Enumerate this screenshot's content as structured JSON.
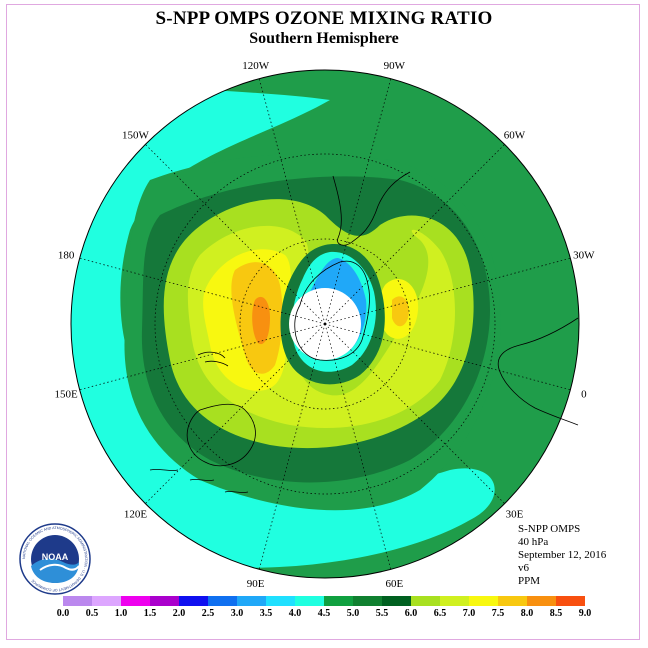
{
  "title": "S-NPP OMPS OZONE MIXING RATIO",
  "subtitle": "Southern Hemisphere",
  "logo": {
    "name": "NOAA",
    "ring_text": "NATIONAL OCEANIC AND ATMOSPHERIC ADMINISTRATION · U.S. DEPARTMENT OF COMMERCE"
  },
  "longitude_labels": [
    "90W",
    "60W",
    "30W",
    "0",
    "30E",
    "60E",
    "90E",
    "120E",
    "150E",
    "180",
    "150W",
    "120W"
  ],
  "info": {
    "instrument": "S-NPP OMPS",
    "level": "40 hPa",
    "date": "September 12, 2016",
    "version": "v6",
    "units": "PPM"
  },
  "colorbar": {
    "ticks": [
      "0.0",
      "0.5",
      "1.0",
      "1.5",
      "2.0",
      "2.5",
      "3.0",
      "3.5",
      "4.0",
      "4.5",
      "5.0",
      "5.5",
      "6.0",
      "6.5",
      "7.0",
      "7.5",
      "8.0",
      "8.5",
      "9.0"
    ],
    "colors": [
      "#bb88ee",
      "#dda6ff",
      "#ee00ee",
      "#aa00cc",
      "#1010f0",
      "#1070f0",
      "#20a8f8",
      "#20e0ff",
      "#20ffe0",
      "#10a040",
      "#108030",
      "#006020",
      "#a8e020",
      "#d0f020",
      "#f8f810",
      "#f8c810",
      "#f89010",
      "#f85010",
      "#e80000",
      "#8b5a3c"
    ]
  },
  "map_colors": {
    "ocean_fill": "#1f9d4a",
    "band_4_0": "#20ffe0",
    "band_4_5": "#1f9d4a",
    "band_5_0": "#15783a",
    "band_5_5": "#a8e020",
    "band_6_0": "#d0f020",
    "band_6_5": "#f8f810",
    "band_7_0": "#f8c810",
    "band_7_5": "#f89010",
    "hole_blue": "#20a8f8",
    "hole_cyan": "#20e0ff"
  }
}
